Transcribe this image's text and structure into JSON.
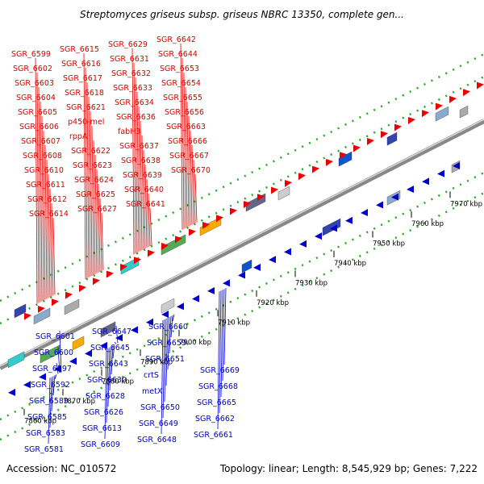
{
  "title": "Streptomyces griseus subsp. griseus NBRC 13350, complete gen...",
  "accession": "Accession: NC_010572",
  "summary": "Topology: linear; Length: 8,545,929 bp; Genes: 7,222",
  "colors": {
    "forward_label": "#dd0000",
    "reverse_label": "#0000cc",
    "forward_arrow": "#ee0000",
    "reverse_arrow": "#0000cc",
    "backbone": "#909090",
    "track_dots": "#22aa22",
    "tick_marks": "#000000"
  },
  "forward_labels": [
    "SGR_6599",
    "SGR_6602",
    "SGR_6603",
    "SGR_6604",
    "SGR_6605",
    "SGR_6606",
    "SGR_6607",
    "SGR_6608",
    "SGR_6610",
    "SGR_6611",
    "SGR_6612",
    "SGR_6614",
    "SGR_6615",
    "SGR_6616",
    "SGR_6617",
    "SGR_6618",
    "SGR_6621",
    "p450-mel",
    "rppA",
    "SGR_6622",
    "SGR_6623",
    "SGR_6624",
    "SGR_6625",
    "SGR_6627",
    "SGR_6629",
    "SGR_6631",
    "SGR_6632",
    "SGR_6633",
    "SGR_6634",
    "SGR_6636",
    "fabH3",
    "SGR_6637",
    "SGR_6638",
    "SGR_6639",
    "SGR_6640",
    "SGR_6641",
    "SGR_6642",
    "SGR_6644",
    "SGR_6653",
    "SGR_6654",
    "SGR_6655",
    "SGR_6656",
    "SGR_6663",
    "SGR_6666",
    "SGR_6667",
    "SGR_6670"
  ],
  "reverse_labels": [
    "SGR_6581",
    "SGR_6583",
    "SGR_6585",
    "SGR_6589",
    "SGR_6592",
    "SGR_6597",
    "SGR_6600",
    "SGR_6601",
    "SGR_6609",
    "SGR_6613",
    "SGR_6626",
    "SGR_6628",
    "SGR_6630",
    "SGR_6643",
    "SGR_6645",
    "SGR_6647",
    "SGR_6648",
    "SGR_6649",
    "SGR_6650",
    "metX",
    "crtS",
    "SGR_6651",
    "SGR_6659",
    "SGR_6660",
    "SGR_6661",
    "SGR_6662",
    "SGR_6665",
    "SGR_6668",
    "SGR_6669"
  ],
  "ticks": [
    "7860 kbp",
    "7870 kbp",
    "7880 kbp",
    "7890 kbp",
    "7900 kbp",
    "7910 kbp",
    "7920 kbp",
    "7930 kbp",
    "7940 kbp",
    "7950 kbp",
    "7960 kbp",
    "7970 kbp"
  ]
}
